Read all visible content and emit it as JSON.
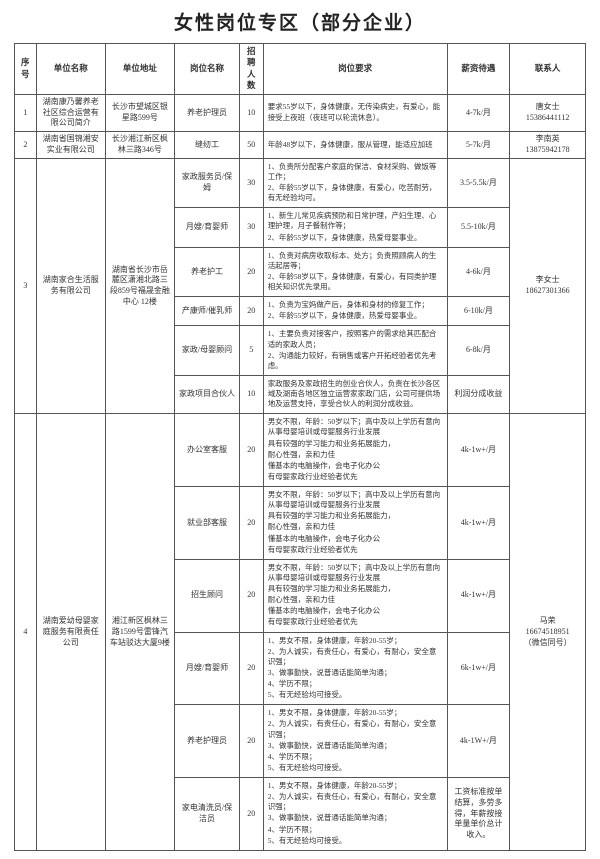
{
  "page_title": "女性岗位专区（部分企业）",
  "headers": {
    "seq": "序号",
    "company": "单位名称",
    "address": "单位地址",
    "position": "岗位名称",
    "num": "招聘人数",
    "req": "岗位要求",
    "salary": "薪资待遇",
    "contact": "联系人"
  },
  "companies": [
    {
      "seq": "1",
      "name": "湖南康乃馨养老社区综合运营有限公司简介",
      "address": "长沙市望城区银星路599号",
      "contact_name": "唐女士",
      "contact_phone": "15386441112",
      "positions": [
        {
          "name": "养老护理员",
          "num": "10",
          "req": [
            "要求55岁以下，身体健康，无传染病史，有爱心，能接受上夜班（夜班可以轮流休息）。"
          ],
          "salary": "4-7k/月"
        }
      ]
    },
    {
      "seq": "2",
      "name": "湖南省国锦湘安实业有限公司",
      "address": "长沙湘江新区枫林三路346号",
      "contact_name": "李南英",
      "contact_phone": "13875942178",
      "positions": [
        {
          "name": "缝纫工",
          "num": "50",
          "req": [
            "年龄48岁以下，身体健康，服从管理，能适应加班"
          ],
          "salary": "5-7k/月"
        }
      ]
    },
    {
      "seq": "3",
      "name": "湖南家合生活服务有限公司",
      "address": "湖南省长沙市岳麓区潇湘北路三段859号福晟金融中心 12楼",
      "contact_name": "李女士",
      "contact_phone": "18627301366",
      "positions": [
        {
          "name": "家政服务员/保姆",
          "num": "30",
          "req": [
            "1、负责所分配客户家庭的保洁、食材采购、做饭等工作；",
            "2、年龄55岁以下，身体健康，有爱心，吃苦耐劳，有无经验均可。"
          ],
          "salary": "3.5-5.5k/月"
        },
        {
          "name": "月嫂/育婴师",
          "num": "30",
          "req": [
            "1、新生儿常见疾病预防和日常护理，产妇生理、心理护理，月子餐制作等；",
            "2、年龄55岁以下，身体健康，热爱母婴事业。"
          ],
          "salary": "5.5-10k/月"
        },
        {
          "name": "养老护工",
          "num": "20",
          "req": [
            "1、负责对病房收取标本、处方；负责照顾病人的生活起居等；",
            "2、年龄58岁以下，身体健康，有爱心，有同类护理相关知识优先录用。"
          ],
          "salary": "4-6k/月"
        },
        {
          "name": "产康师/催乳师",
          "num": "20",
          "req": [
            "1、负责为宝妈做产后，身体和身材的修复工作；",
            "2、年龄55岁以下，身体健康，热爱母婴事业。"
          ],
          "salary": "6-10k/月"
        },
        {
          "name": "家政/母婴顾问",
          "num": "5",
          "req": [
            "1、主要负责对接客户，按照客户的需求给其匹配合适的家政人员；",
            "2、沟通能力较好，有销售或客户开拓经验者优先考虑。"
          ],
          "salary": "6-8k/月"
        },
        {
          "name": "家政项目合伙人",
          "num": "10",
          "req": [
            "家政服务及家政招生的创业合伙人，负责在长沙各区域及湖南各地区独立运营家家政门店，公司可提供场地及运营支持，享受合伙人的利润分成收益。"
          ],
          "salary": "利润分成收益"
        }
      ]
    },
    {
      "seq": "4",
      "name": "湖南爱幼母婴家庭服务有限责任公司",
      "address": "湘江新区枫林三路1599号雷锋汽车站驳达大厦9楼",
      "contact_name": "马荣",
      "contact_phone": "16674518951",
      "contact_extra": "（微信同号）",
      "positions": [
        {
          "name": "办公室客服",
          "num": "20",
          "req": [
            "男女不限，年龄：50岁以下；高中及以上学历有意向从事母婴培训或母婴服务行业发展",
            "具有较强的学习能力和业务拓展能力，",
            "耐心性强，亲和力佳",
            "懂基本的电脑操作，会电子化办公",
            "有母婴家政行业经验者优先"
          ],
          "salary": "4k-1w+/月"
        },
        {
          "name": "就业部客服",
          "num": "20",
          "req": [
            "男女不限，年龄：50岁以下；高中及以上学历有意向从事母婴培训或母婴服务行业发展",
            "具有较强的学习能力和业务拓展能力，",
            "耐心性强，亲和力佳",
            "懂基本的电脑操作，会电子化办公",
            "有母婴家政行业经验者优先"
          ],
          "salary": "4k-1w+/月"
        },
        {
          "name": "招生顾问",
          "num": "20",
          "req": [
            "男女不限，年龄：50岁以下；高中及以上学历有意向从事母婴培训或母婴服务行业发展",
            "具有较强的学习能力和业务拓展能力，",
            "耐心性强，亲和力佳",
            "懂基本的电脑操作，会电子化办公",
            "有母婴家政行业经验者优先"
          ],
          "salary": "4k-1w+/月"
        },
        {
          "name": "月嫂/育婴师",
          "num": "20",
          "req": [
            "1、男女不限，身体健康，年龄20-55岁；",
            "2、为人诚实，有责任心，有爱心，有耐心，安全意识强；",
            "3、做事勤快，说普通话能简单沟通；",
            "4、学历不限；",
            "5、有无经验均可接受。"
          ],
          "salary": "6k-1w+/月"
        },
        {
          "name": "养老护理员",
          "num": "20",
          "req": [
            "1、男女不限，身体健康，年龄20-55岁；",
            "2、为人诚实，有责任心，有爱心，有耐心，安全意识强；",
            "3、做事勤快，说普通话能简单沟通；",
            "4、学历不限；",
            "5、有无经验均可接受。"
          ],
          "salary": "4k-1W+/月"
        },
        {
          "name": "家电清洗员/保洁员",
          "num": "20",
          "req": [
            "1、男女不限，身体健康，年龄20-55岁；",
            "2、为人诚实，有责任心，有爱心，有耐心，安全意识强；",
            "3、做事勤快，说普通话能简单沟通；",
            "4、学历不限；",
            "5、有无经验均可接受。"
          ],
          "salary": "工资标准按单结算，多劳多得，年薪按接单量单价总计收入。"
        }
      ]
    }
  ]
}
